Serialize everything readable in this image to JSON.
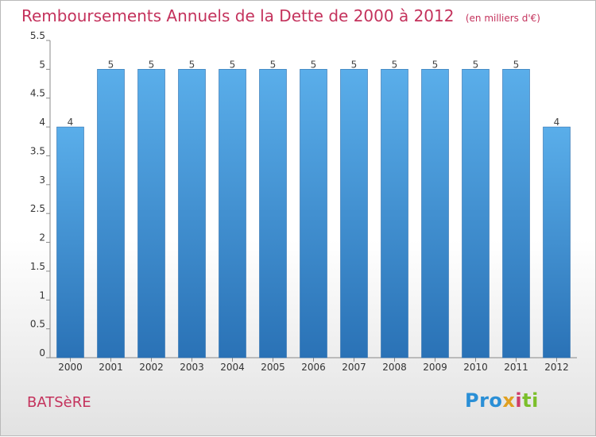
{
  "chart_data": {
    "type": "bar",
    "title": "Remboursements Annuels de la Dette de 2000 à 2012",
    "units": "(en milliers d'€)",
    "categories": [
      "2000",
      "2001",
      "2002",
      "2003",
      "2004",
      "2005",
      "2006",
      "2007",
      "2008",
      "2009",
      "2010",
      "2011",
      "2012"
    ],
    "values": [
      4,
      5,
      5,
      5,
      5,
      5,
      5,
      5,
      5,
      5,
      5,
      5,
      4
    ],
    "yticks": [
      "0",
      "0.5",
      "1",
      "1.5",
      "2",
      "2.5",
      "3",
      "3.5",
      "4",
      "4.5",
      "5",
      "5.5"
    ],
    "ylim": [
      0,
      5.5
    ],
    "grid": false,
    "bar_color": "#3f8fd2"
  },
  "place": "BATSèRE",
  "logo": {
    "p1": "Pro",
    "p2": "x",
    "p3": "i",
    "p4": "ti"
  }
}
